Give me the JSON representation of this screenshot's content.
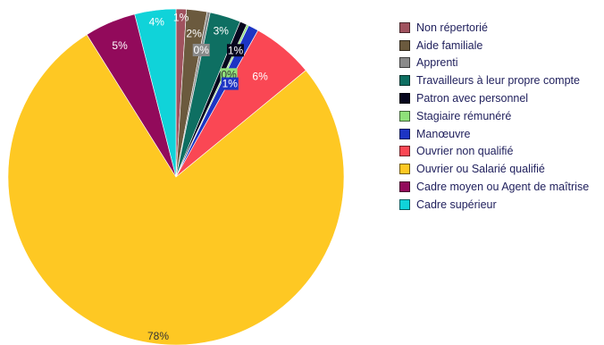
{
  "chart_data": {
    "type": "pie",
    "start_angle_deg": 0,
    "direction": "clockwise",
    "legend_position": "right",
    "slices": [
      {
        "label": "Non répertorié",
        "value": 1,
        "display": "1%",
        "color": "#a0525e"
      },
      {
        "label": "Aide familiale",
        "value": 2,
        "display": "2%",
        "color": "#6b5a3e"
      },
      {
        "label": "Apprenti",
        "value": 0.3,
        "display": "0%",
        "color": "#8a8a8a"
      },
      {
        "label": "Travailleurs à leur propre compte",
        "value": 3,
        "display": "3%",
        "color": "#0e6f62"
      },
      {
        "label": "Patron avec personnel",
        "value": 0.7,
        "display": "1%",
        "color": "#07071e"
      },
      {
        "label": "Stagiaire rémunéré",
        "value": 0.2,
        "display": "0%",
        "color": "#8fe07a"
      },
      {
        "label": "Manœuvre",
        "value": 1,
        "display": "1%",
        "color": "#1d35c4"
      },
      {
        "label": "Ouvrier non qualifié",
        "value": 6,
        "display": "6%",
        "color": "#fa4754"
      },
      {
        "label": "Ouvrier ou Salarié qualifié",
        "value": 77.8,
        "display": "78%",
        "color": "#fec823"
      },
      {
        "label": "Cadre moyen ou Agent de maîtrise",
        "value": 5,
        "display": "5%",
        "color": "#920a5b"
      },
      {
        "label": "Cadre supérieur",
        "value": 4,
        "display": "4%",
        "color": "#10d3d9"
      }
    ]
  }
}
